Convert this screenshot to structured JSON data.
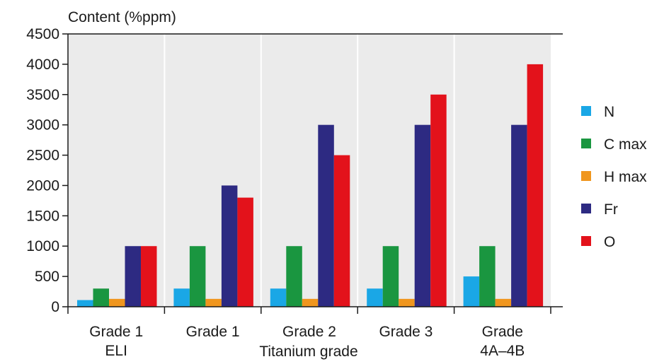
{
  "chart_data": {
    "type": "bar",
    "ylabel": "Content (%ppm)",
    "xlabel": "Titanium grade",
    "ylim": [
      0,
      4500
    ],
    "yticks": [
      0,
      500,
      1000,
      1500,
      2000,
      2500,
      3000,
      3500,
      4000,
      4500
    ],
    "grid": true,
    "legend_position": "right",
    "categories": [
      [
        "Grade 1",
        "ELI"
      ],
      [
        "Grade 1"
      ],
      [
        "Grade 2"
      ],
      [
        "Grade 3"
      ],
      [
        "Grade",
        "4A–4B"
      ]
    ],
    "series": [
      {
        "name": "N",
        "color": "#1aa7e6",
        "values": [
          110,
          300,
          300,
          300,
          500
        ]
      },
      {
        "name": "C max",
        "color": "#1a9640",
        "values": [
          300,
          1000,
          1000,
          1000,
          1000
        ]
      },
      {
        "name": "H max",
        "color": "#f0961e",
        "values": [
          130,
          130,
          130,
          130,
          130
        ]
      },
      {
        "name": "Fr",
        "color": "#2d2a82",
        "values": [
          1000,
          2000,
          3000,
          3000,
          3000
        ]
      },
      {
        "name": "O",
        "color": "#e3121b",
        "values": [
          1000,
          1800,
          2500,
          3500,
          4000
        ]
      }
    ]
  }
}
